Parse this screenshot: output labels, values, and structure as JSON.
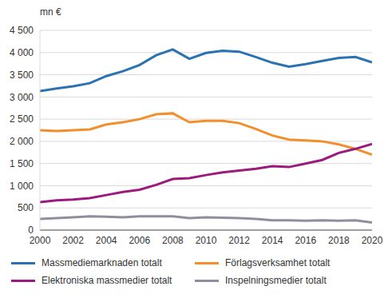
{
  "chart_data": {
    "type": "line",
    "ylabel": "mn €",
    "x": [
      2000,
      2001,
      2002,
      2003,
      2004,
      2005,
      2006,
      2007,
      2008,
      2009,
      2010,
      2011,
      2012,
      2013,
      2014,
      2015,
      2016,
      2017,
      2018,
      2019,
      2020
    ],
    "xlim": [
      2000,
      2020
    ],
    "xticks": [
      2000,
      2002,
      2004,
      2006,
      2008,
      2010,
      2012,
      2014,
      2016,
      2018,
      2020
    ],
    "ylim": [
      0,
      4500
    ],
    "yticks": [
      0,
      500,
      {
        "value": 1000,
        "label": "1 000"
      },
      {
        "value": 1500,
        "label": "1 500"
      },
      {
        "value": 2000,
        "label": "2 000"
      },
      {
        "value": 2500,
        "label": "2 500"
      },
      {
        "value": 3000,
        "label": "3 000"
      },
      {
        "value": 3500,
        "label": "3 500"
      },
      {
        "value": 4000,
        "label": "4 000"
      },
      {
        "value": 4500,
        "label": "4 500"
      }
    ],
    "grid": true,
    "legend": "bottom",
    "series": [
      {
        "name": "Massmediemarknaden totalt",
        "color": "#2a72b2",
        "values": [
          3130,
          3190,
          3240,
          3310,
          3470,
          3580,
          3720,
          3940,
          4070,
          3860,
          3990,
          4040,
          4020,
          3900,
          3770,
          3680,
          3740,
          3810,
          3880,
          3900,
          3780
        ]
      },
      {
        "name": "Förlagsverksamhet totalt",
        "color": "#f28e2b",
        "values": [
          2250,
          2230,
          2250,
          2270,
          2380,
          2430,
          2500,
          2610,
          2630,
          2430,
          2460,
          2460,
          2410,
          2280,
          2130,
          2040,
          2020,
          2000,
          1930,
          1830,
          1700
        ]
      },
      {
        "name": "Elektroniska massmedier totalt",
        "color": "#9b1b7c",
        "values": [
          630,
          670,
          690,
          720,
          790,
          860,
          910,
          1020,
          1150,
          1170,
          1240,
          1300,
          1340,
          1380,
          1440,
          1420,
          1500,
          1580,
          1740,
          1830,
          1940
        ]
      },
      {
        "name": "Inspelningsmedier totalt",
        "color": "#8e8e9f",
        "values": [
          250,
          270,
          290,
          310,
          300,
          290,
          310,
          310,
          310,
          270,
          290,
          280,
          270,
          250,
          220,
          220,
          210,
          220,
          210,
          220,
          170
        ]
      }
    ]
  }
}
